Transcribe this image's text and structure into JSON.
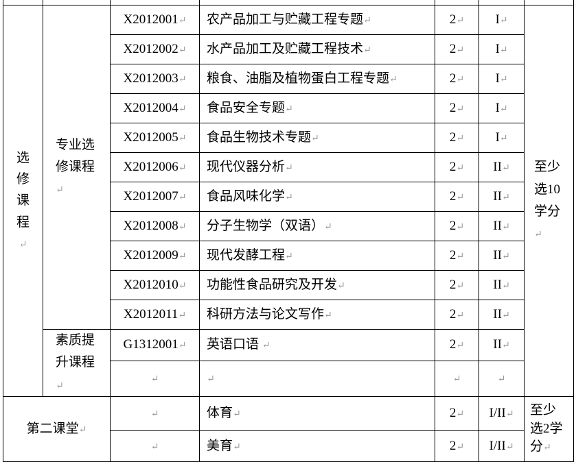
{
  "section_elective": "选修课程",
  "subgroup_major": "专业选修课程",
  "subgroup_quality": "素质提升课程",
  "elective_requirement": "至少选10学分",
  "courses": [
    {
      "code": "X2012001",
      "name": "农产品加工与贮藏工程专题",
      "credits": "2",
      "semester": "I"
    },
    {
      "code": "X2012002",
      "name": "水产品加工及贮藏工程技术",
      "credits": "2",
      "semester": "I"
    },
    {
      "code": "X2012003",
      "name": "粮食、油脂及植物蛋白工程专题",
      "credits": "2",
      "semester": "I"
    },
    {
      "code": "X2012004",
      "name": "食品安全专题",
      "credits": "2",
      "semester": "I"
    },
    {
      "code": "X2012005",
      "name": "食品生物技术专题",
      "credits": "2",
      "semester": "I"
    },
    {
      "code": "X2012006",
      "name": "现代仪器分析",
      "credits": "2",
      "semester": "II"
    },
    {
      "code": "X2012007",
      "name": "食品风味化学",
      "credits": "2",
      "semester": "II"
    },
    {
      "code": "X2012008",
      "name": "分子生物学（双语）",
      "credits": "2",
      "semester": "II"
    },
    {
      "code": "X2012009",
      "name": "现代发酵工程",
      "credits": "2",
      "semester": "II"
    },
    {
      "code": "X2012010",
      "name": "功能性食品研究及开发",
      "credits": "2",
      "semester": "II"
    },
    {
      "code": "X2012011",
      "name": "科研方法与论文写作",
      "credits": "2",
      "semester": "II"
    },
    {
      "code": "G1312001",
      "name": "英语口语 ",
      "credits": "2",
      "semester": "II"
    },
    {
      "code": "",
      "name": "",
      "credits": "",
      "semester": ""
    }
  ],
  "section_second": "第二课堂",
  "second_courses": [
    {
      "code": "",
      "name": "体育",
      "credits": "2",
      "semester": "I/II"
    },
    {
      "code": "",
      "name": "美育",
      "credits": "2",
      "semester": "I/II"
    }
  ],
  "second_requirement": "至少选2学分"
}
